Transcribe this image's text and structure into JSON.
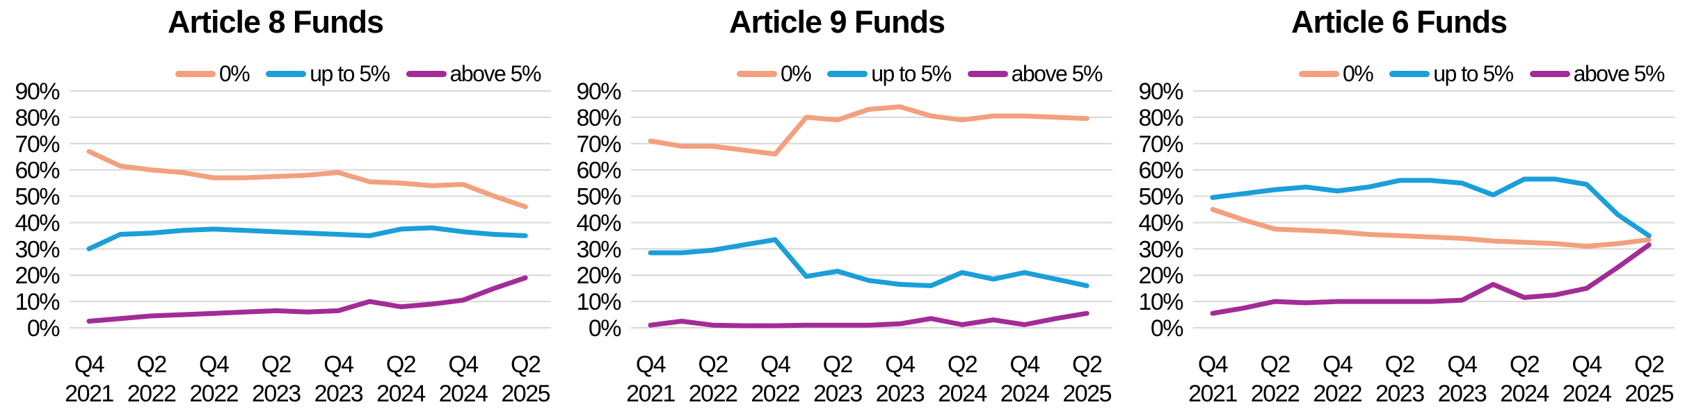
{
  "page": {
    "background": "#ffffff",
    "grid_color": "#d7d7d7",
    "text_color": "#000000"
  },
  "legend": {
    "items": [
      {
        "label": "0%",
        "color": "#F2A07E"
      },
      {
        "label": "up to 5%",
        "color": "#1A9FD8"
      },
      {
        "label": "above 5%",
        "color": "#A22C96"
      }
    ],
    "position": "top-center-right"
  },
  "axes": {
    "y_tick_labels": [
      "90%",
      "80%",
      "70%",
      "60%",
      "50%",
      "40%",
      "30%",
      "20%",
      "10%",
      "0%"
    ],
    "x_tick_labels": [
      {
        "quarter": "Q4",
        "year": "2021"
      },
      {
        "quarter": "Q2",
        "year": "2022"
      },
      {
        "quarter": "Q4",
        "year": "2022"
      },
      {
        "quarter": "Q2",
        "year": "2023"
      },
      {
        "quarter": "Q4",
        "year": "2023"
      },
      {
        "quarter": "Q2",
        "year": "2024"
      },
      {
        "quarter": "Q4",
        "year": "2024"
      },
      {
        "quarter": "Q2",
        "year": "2025"
      }
    ]
  },
  "charts": [
    {
      "title": "Article 8 Funds"
    },
    {
      "title": "Article 9 Funds"
    },
    {
      "title": "Article 6 Funds"
    }
  ],
  "chart_data": [
    {
      "type": "line",
      "title": "Article 8 Funds",
      "x": [
        "Q4 2021",
        "Q1 2022",
        "Q2 2022",
        "Q3 2022",
        "Q4 2022",
        "Q1 2023",
        "Q2 2023",
        "Q3 2023",
        "Q4 2023",
        "Q1 2024",
        "Q2 2024",
        "Q3 2024",
        "Q4 2024",
        "Q1 2025",
        "Q2 2025"
      ],
      "x_shown_labels": [
        "Q4 2021",
        "Q2 2022",
        "Q4 2022",
        "Q2 2023",
        "Q4 2023",
        "Q2 2024",
        "Q4 2024",
        "Q2 2025"
      ],
      "ylim": [
        0,
        90
      ],
      "y_ticks_percent": [
        0,
        10,
        20,
        30,
        40,
        50,
        60,
        70,
        80,
        90
      ],
      "grid": true,
      "legend_position": "top",
      "series": [
        {
          "name": "0%",
          "color": "#F2A07E",
          "values": [
            67,
            61.5,
            60,
            59,
            57,
            57,
            57.5,
            58,
            59,
            55.5,
            55,
            54,
            54.5,
            50,
            46
          ]
        },
        {
          "name": "up to 5%",
          "color": "#1A9FD8",
          "values": [
            30,
            35.5,
            36,
            37,
            37.5,
            37,
            36.5,
            36,
            35.5,
            35,
            37.5,
            38,
            36.5,
            35.5,
            35
          ]
        },
        {
          "name": "above 5%",
          "color": "#A22C96",
          "values": [
            2.5,
            3.5,
            4.5,
            5,
            5.5,
            6,
            6.5,
            6,
            6.5,
            10,
            8,
            9,
            10.5,
            15,
            19
          ]
        }
      ]
    },
    {
      "type": "line",
      "title": "Article 9 Funds",
      "x": [
        "Q4 2021",
        "Q1 2022",
        "Q2 2022",
        "Q3 2022",
        "Q4 2022",
        "Q1 2023",
        "Q2 2023",
        "Q3 2023",
        "Q4 2023",
        "Q1 2024",
        "Q2 2024",
        "Q3 2024",
        "Q4 2024",
        "Q1 2025",
        "Q2 2025"
      ],
      "x_shown_labels": [
        "Q4 2021",
        "Q2 2022",
        "Q4 2022",
        "Q2 2023",
        "Q4 2023",
        "Q2 2024",
        "Q4 2024",
        "Q2 2025"
      ],
      "ylim": [
        0,
        90
      ],
      "y_ticks_percent": [
        0,
        10,
        20,
        30,
        40,
        50,
        60,
        70,
        80,
        90
      ],
      "grid": true,
      "legend_position": "top",
      "series": [
        {
          "name": "0%",
          "color": "#F2A07E",
          "values": [
            71,
            69,
            69,
            67.5,
            66,
            80,
            79,
            83,
            84,
            80.5,
            79,
            80.5,
            80.5,
            80,
            79.5
          ]
        },
        {
          "name": "up to 5%",
          "color": "#1A9FD8",
          "values": [
            28.5,
            28.5,
            29.5,
            31.5,
            33.5,
            19.5,
            21.5,
            18,
            16.5,
            16,
            21,
            18.5,
            21,
            18.5,
            16
          ]
        },
        {
          "name": "above 5%",
          "color": "#A22C96",
          "values": [
            1,
            2.5,
            1,
            0.8,
            0.8,
            1,
            1,
            1,
            1.5,
            3.5,
            1.2,
            3,
            1.2,
            3.5,
            5.5
          ]
        }
      ]
    },
    {
      "type": "line",
      "title": "Article 6 Funds",
      "x": [
        "Q4 2021",
        "Q1 2022",
        "Q2 2022",
        "Q3 2022",
        "Q4 2022",
        "Q1 2023",
        "Q2 2023",
        "Q3 2023",
        "Q4 2023",
        "Q1 2024",
        "Q2 2024",
        "Q3 2024",
        "Q4 2024",
        "Q1 2025",
        "Q2 2025"
      ],
      "x_shown_labels": [
        "Q4 2021",
        "Q2 2022",
        "Q4 2022",
        "Q2 2023",
        "Q4 2023",
        "Q2 2024",
        "Q4 2024",
        "Q2 2025"
      ],
      "ylim": [
        0,
        90
      ],
      "y_ticks_percent": [
        0,
        10,
        20,
        30,
        40,
        50,
        60,
        70,
        80,
        90
      ],
      "grid": true,
      "legend_position": "top",
      "series": [
        {
          "name": "0%",
          "color": "#F2A07E",
          "values": [
            45,
            41,
            37.5,
            37,
            36.5,
            35.5,
            35,
            34.5,
            34,
            33,
            32.5,
            32,
            31,
            32,
            33.5
          ]
        },
        {
          "name": "up to 5%",
          "color": "#1A9FD8",
          "values": [
            49.5,
            51,
            52.5,
            53.5,
            52,
            53.5,
            56,
            56,
            55,
            50.5,
            56.5,
            56.5,
            54.5,
            43,
            35
          ]
        },
        {
          "name": "above 5%",
          "color": "#A22C96",
          "values": [
            5.5,
            7.5,
            10,
            9.5,
            10,
            10,
            10,
            10,
            10.5,
            16.5,
            11.5,
            12.5,
            15,
            23,
            31.5
          ]
        }
      ]
    }
  ]
}
